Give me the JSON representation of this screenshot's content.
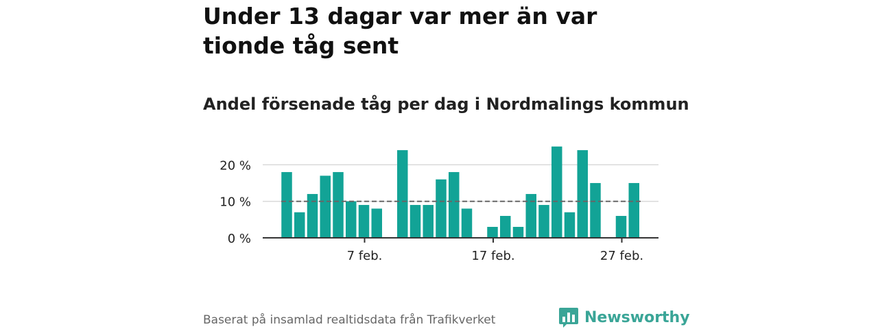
{
  "title": "Under 13 dagar var mer än var tionde tåg sent",
  "subtitle": "Andel försenade tåg per dag i Nordmalings kommun",
  "footer": "Baserat på insamlad realtidsdata från Trafikverket",
  "logo": {
    "text": "Newsworthy",
    "icon": "newsworthy-chart-bubble-icon"
  },
  "colors": {
    "bar": "#12a396",
    "reference_line": "#666666",
    "grid": "#d9d9d9",
    "logo": "#3aa597"
  },
  "chart_data": {
    "type": "bar",
    "x_start_day": 1,
    "x": [
      1,
      2,
      3,
      4,
      5,
      6,
      7,
      8,
      9,
      10,
      11,
      12,
      13,
      14,
      15,
      16,
      17,
      18,
      19,
      20,
      21,
      22,
      23,
      24,
      25,
      26,
      27,
      28
    ],
    "values": [
      18,
      7,
      12,
      17,
      18,
      10,
      9,
      8,
      0,
      24,
      9,
      9,
      16,
      18,
      8,
      0,
      3,
      6,
      3,
      12,
      9,
      25,
      7,
      24,
      15,
      0,
      6,
      15
    ],
    "ylim": [
      0,
      25
    ],
    "y_ticks": [
      0,
      10,
      20
    ],
    "y_tick_labels": [
      "0 %",
      "10 %",
      "20 %"
    ],
    "x_ticks": [
      7,
      17,
      27
    ],
    "x_tick_labels": [
      "7 feb.",
      "17 feb.",
      "27 feb."
    ],
    "reference_line": 10,
    "grid": true
  }
}
